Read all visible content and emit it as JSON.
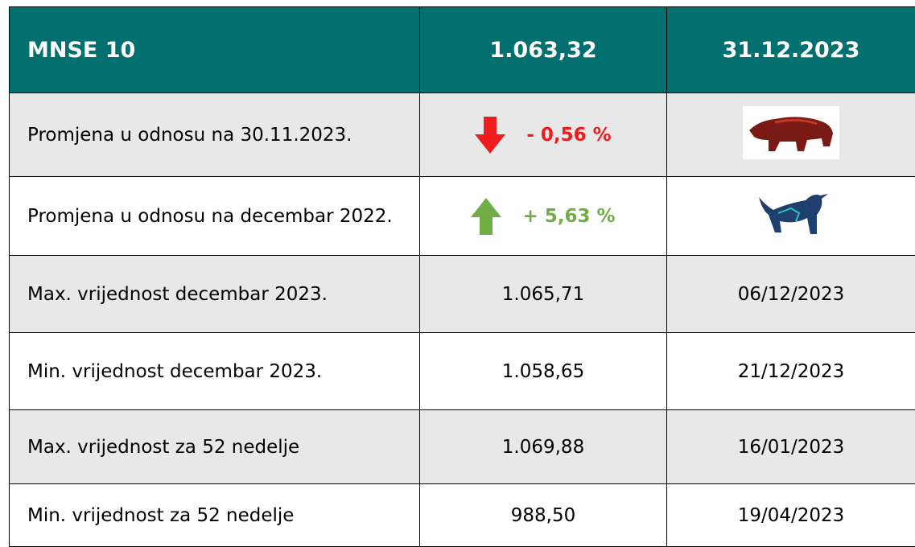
{
  "header": [
    "MNSE 10",
    "1.063,32",
    "31.12.2023"
  ],
  "rows": [
    [
      "Promjena u odnosu na 30.11.2023.",
      "- 0,56 %"
    ],
    [
      "Promjena u odnosu na decembar 2022.",
      "+ 5,63 %"
    ],
    [
      "Max. vrijednost decembar 2023.",
      "1.065,71",
      "06/12/2023"
    ],
    [
      "Min. vrijednost decembar 2023.",
      "1.058,65",
      "21/12/2023"
    ],
    [
      "Max. vrijednost za 52 nedelje",
      "1.069,88",
      "16/01/2023"
    ],
    [
      "Min. vrijednost za 52 nedelje",
      "988,50",
      "19/04/2023"
    ]
  ]
}
